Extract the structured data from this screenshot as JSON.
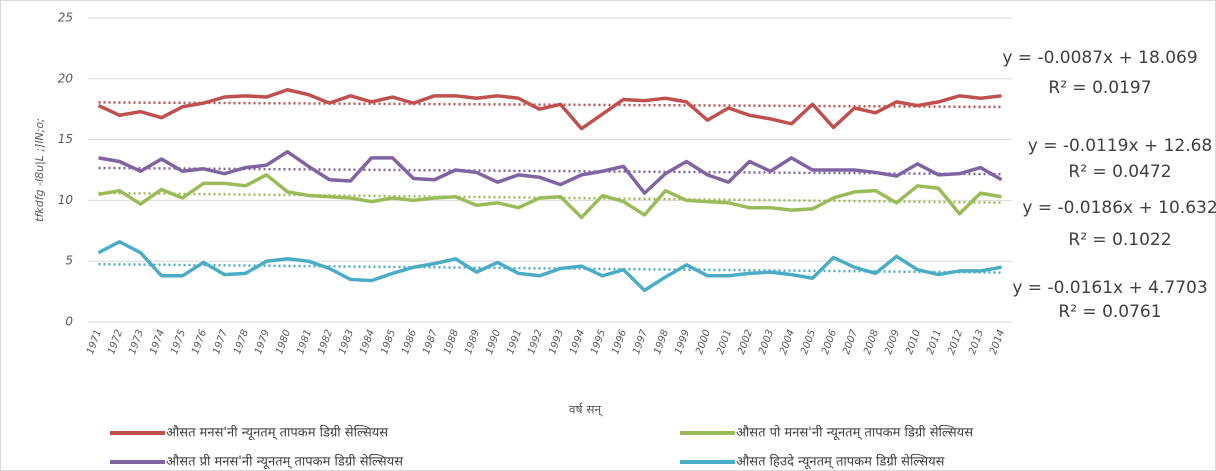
{
  "chart_data": {
    "type": "line",
    "y_label": "tfkdfg -l8u|L ;]lN;o;",
    "x_label": "वर्ष सन्",
    "categories": [
      "1971",
      "1972",
      "1973",
      "1974",
      "1975",
      "1976",
      "1977",
      "1978",
      "1979",
      "1980",
      "1981",
      "1982",
      "1983",
      "1984",
      "1985",
      "1986",
      "1987",
      "1988",
      "1989",
      "1990",
      "1991",
      "1992",
      "1993",
      "1994",
      "1995",
      "1996",
      "1997",
      "1998",
      "1999",
      "2000",
      "2001",
      "2002",
      "2003",
      "2004",
      "2005",
      "2006",
      "2007",
      "2008",
      "2009",
      "2010",
      "2011",
      "2012",
      "2013",
      "2014"
    ],
    "ylim": [
      0,
      25
    ],
    "yticks": [
      0,
      5,
      10,
      15,
      20,
      25
    ],
    "grid": true,
    "series": [
      {
        "name": "औसत मनस'नी न्यूनतम् तापकम डिग्री सेल्सियस",
        "color": "#c0504d",
        "values": [
          17.8,
          17.0,
          17.3,
          16.8,
          17.7,
          18.0,
          18.5,
          18.6,
          18.5,
          19.1,
          18.7,
          18.0,
          18.6,
          18.1,
          18.5,
          18.0,
          18.6,
          18.6,
          18.4,
          18.6,
          18.4,
          17.5,
          17.9,
          15.9,
          17.1,
          18.3,
          18.2,
          18.4,
          18.1,
          16.6,
          17.6,
          17.0,
          16.7,
          16.3,
          17.9,
          16.0,
          17.6,
          17.2,
          18.1,
          17.8,
          18.1,
          18.6,
          18.4,
          18.6
        ],
        "trendline": {
          "slope": -0.0087,
          "intercept": 18.069,
          "equation": "y = -0.0087x + 18.069",
          "r2": "R² = 0.0197"
        }
      },
      {
        "name": "औसत प्री मनस'नी न्यूनतम् तापकम डिग्री सेल्सियस",
        "color": "#8064a2",
        "values": [
          13.5,
          13.2,
          12.4,
          13.4,
          12.4,
          12.6,
          12.2,
          12.7,
          12.9,
          14.0,
          12.8,
          11.7,
          11.6,
          13.5,
          13.5,
          11.8,
          11.7,
          12.5,
          12.3,
          11.5,
          12.1,
          11.9,
          11.3,
          12.1,
          12.4,
          12.8,
          10.6,
          12.2,
          13.2,
          12.1,
          11.5,
          13.2,
          12.4,
          13.5,
          12.5,
          12.5,
          12.5,
          12.3,
          12.0,
          13.0,
          12.1,
          12.2,
          12.7,
          11.7
        ],
        "trendline": {
          "slope": -0.0119,
          "intercept": 12.68,
          "equation": "y = -0.0119x + 12.68",
          "r2": "R² = 0.0472"
        }
      },
      {
        "name": "औसत पो मनस'नी न्यूनतम् तापकम डिग्री सेल्सियस",
        "color": "#9bbb59",
        "values": [
          10.5,
          10.8,
          9.7,
          10.9,
          10.2,
          11.4,
          11.4,
          11.2,
          12.1,
          10.7,
          10.4,
          10.3,
          10.2,
          9.9,
          10.2,
          10.0,
          10.2,
          10.3,
          9.6,
          9.8,
          9.4,
          10.2,
          10.3,
          8.6,
          10.4,
          9.9,
          8.8,
          10.8,
          10.0,
          9.9,
          9.8,
          9.4,
          9.4,
          9.2,
          9.3,
          10.2,
          10.7,
          10.8,
          9.8,
          11.2,
          11.0,
          8.9,
          10.6,
          10.3
        ],
        "trendline": {
          "slope": -0.0186,
          "intercept": 10.632,
          "equation": "y = -0.0186x + 10.632",
          "r2": "R² = 0.1022"
        }
      },
      {
        "name": "औसत हिउदे न्यूनतम् तापकम डिग्री सेल्सियस",
        "color": "#4bacc6",
        "values": [
          5.7,
          6.6,
          5.7,
          3.8,
          3.8,
          4.9,
          3.9,
          4.0,
          5.0,
          5.2,
          5.0,
          4.4,
          3.5,
          3.4,
          4.0,
          4.5,
          4.8,
          5.2,
          4.1,
          4.9,
          4.0,
          3.8,
          4.4,
          4.6,
          3.8,
          4.3,
          2.6,
          3.7,
          4.7,
          3.8,
          3.8,
          4.0,
          4.1,
          3.9,
          3.6,
          5.3,
          4.5,
          4.0,
          5.4,
          4.3,
          3.9,
          4.2,
          4.2,
          4.5
        ],
        "trendline": {
          "slope": -0.0161,
          "intercept": 4.7703,
          "equation": "y = -0.0161x + 4.7703",
          "r2": "R² = 0.0761"
        }
      }
    ]
  }
}
